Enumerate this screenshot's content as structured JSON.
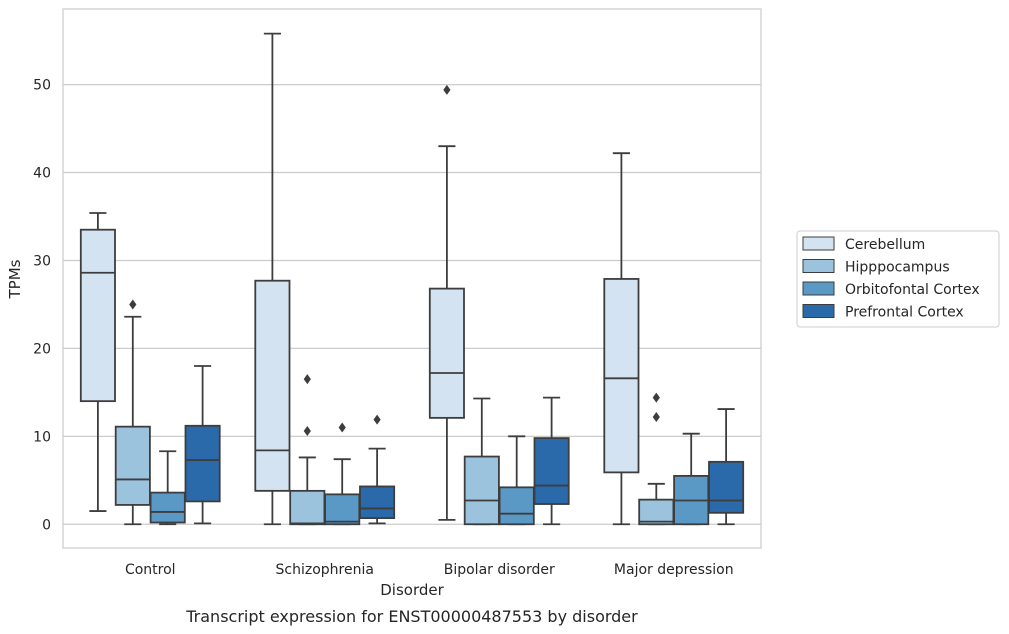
{
  "chart_data": {
    "type": "box",
    "title": "",
    "caption": "Transcript expression for ENST00000487553 by disorder",
    "xlabel": "Disorder",
    "ylabel": "TPMs",
    "ylim": [
      -2.7,
      58.6
    ],
    "yticks": [
      0,
      10,
      20,
      30,
      40,
      50
    ],
    "grid": "horizontal",
    "legend_position": "right",
    "categories": [
      "Control",
      "Schizophrenia",
      "Bipolar disorder",
      "Major depression"
    ],
    "series": [
      {
        "name": "Cerebellum",
        "color": "#d4e3f2",
        "boxes": [
          {
            "whisker_low": 1.5,
            "q1": 14.0,
            "median": 28.6,
            "q3": 33.5,
            "whisker_high": 35.4,
            "outliers": []
          },
          {
            "whisker_low": 0.0,
            "q1": 3.8,
            "median": 8.4,
            "q3": 27.7,
            "whisker_high": 55.8,
            "outliers": []
          },
          {
            "whisker_low": 0.5,
            "q1": 12.1,
            "median": 17.2,
            "q3": 26.8,
            "whisker_high": 43.0,
            "outliers": [
              49.4
            ]
          },
          {
            "whisker_low": 0.0,
            "q1": 5.9,
            "median": 16.6,
            "q3": 27.9,
            "whisker_high": 42.2,
            "outliers": []
          }
        ]
      },
      {
        "name": "Hipppocampus",
        "color": "#9cc3dd",
        "boxes": [
          {
            "whisker_low": 0.0,
            "q1": 2.2,
            "median": 5.1,
            "q3": 11.1,
            "whisker_high": 23.6,
            "outliers": [
              25.0
            ]
          },
          {
            "whisker_low": 0.0,
            "q1": 0.0,
            "median": 0.1,
            "q3": 3.8,
            "whisker_high": 7.6,
            "outliers": [
              10.6,
              16.5
            ]
          },
          {
            "whisker_low": 0.0,
            "q1": 0.0,
            "median": 2.7,
            "q3": 7.7,
            "whisker_high": 14.3,
            "outliers": []
          },
          {
            "whisker_low": 0.0,
            "q1": 0.0,
            "median": 0.3,
            "q3": 2.8,
            "whisker_high": 4.6,
            "outliers": [
              12.2,
              14.4
            ]
          }
        ]
      },
      {
        "name": "Orbitofontal Cortex",
        "color": "#5a99c6",
        "boxes": [
          {
            "whisker_low": 0.0,
            "q1": 0.2,
            "median": 1.4,
            "q3": 3.6,
            "whisker_high": 8.3,
            "outliers": []
          },
          {
            "whisker_low": 0.0,
            "q1": 0.0,
            "median": 0.3,
            "q3": 3.4,
            "whisker_high": 7.4,
            "outliers": [
              11.0
            ]
          },
          {
            "whisker_low": 0.0,
            "q1": 0.0,
            "median": 1.2,
            "q3": 4.2,
            "whisker_high": 10.0,
            "outliers": []
          },
          {
            "whisker_low": 0.0,
            "q1": 0.0,
            "median": 2.7,
            "q3": 5.5,
            "whisker_high": 10.3,
            "outliers": []
          }
        ]
      },
      {
        "name": "Prefrontal Cortex",
        "color": "#2a6aab",
        "boxes": [
          {
            "whisker_low": 0.1,
            "q1": 2.6,
            "median": 7.3,
            "q3": 11.2,
            "whisker_high": 18.0,
            "outliers": []
          },
          {
            "whisker_low": 0.1,
            "q1": 0.7,
            "median": 1.8,
            "q3": 4.3,
            "whisker_high": 8.6,
            "outliers": [
              11.9
            ]
          },
          {
            "whisker_low": 0.0,
            "q1": 2.3,
            "median": 4.4,
            "q3": 9.8,
            "whisker_high": 14.4,
            "outliers": []
          },
          {
            "whisker_low": 0.0,
            "q1": 1.3,
            "median": 2.7,
            "q3": 7.1,
            "whisker_high": 13.1,
            "outliers": []
          }
        ]
      }
    ]
  }
}
